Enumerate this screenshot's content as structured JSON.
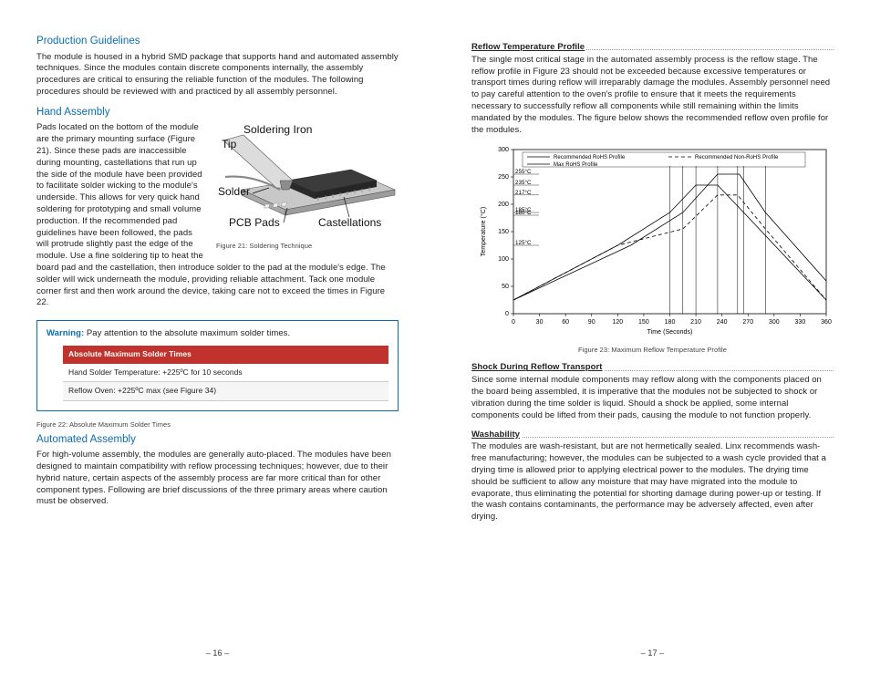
{
  "colors": {
    "heading": "#0a6db2",
    "warn_border": "#0a6db2",
    "table_header_bg": "#c0322b",
    "text": "#222222",
    "figcap": "#444444"
  },
  "fonts": {
    "heading_size_pt": 11.5,
    "body_size_pt": 9.5,
    "figcap_size_pt": 7.5,
    "table_size_pt": 8.5
  },
  "left": {
    "h_production": "Production Guidelines",
    "p_production": "The module is housed in a hybrid SMD package that supports hand and automated assembly techniques. Since the modules contain discrete components internally, the assembly procedures are critical to ensuring the reliable function of the modules. The following procedures should be reviewed with and practiced by all assembly personnel.",
    "h_hand": "Hand Assembly",
    "p_hand": "Pads located on the bottom of the module are the primary mounting surface (Figure 21). Since these pads are inaccessible during mounting, castellations that run up the side of the module have been provided to facilitate solder wicking to the module's underside. This allows for very quick hand soldering for prototyping and small volume production.  If the recommended pad guidelines have been followed, the pads will protrude slightly past the edge of the module. Use a fine soldering tip to heat the board pad and the castellation, then introduce solder to the pad at the module's edge. The solder will wick underneath the module, providing reliable attachment. Tack one module corner first and then work around the device, taking care not to exceed the times in Figure 22.",
    "fig21_labels": {
      "iron": "Soldering Iron",
      "tip": "Tip",
      "solder": "Solder",
      "pcb": "PCB Pads",
      "cast": "Castellations"
    },
    "figcap21": "Figure 21: Soldering Technique",
    "warn_strong": "Warning:",
    "warn_text": " Pay attention to the absolute maximum solder times.",
    "table_header": "Absolute Maximum Solder Times",
    "table_row1": "Hand Solder Temperature: +225ºC for 10 seconds",
    "table_row2": "Reflow Oven: +225ºC max (see Figure 34)",
    "figcap22": "Figure 22: Absolute Maximum Solder Times",
    "h_auto": "Automated Assembly",
    "p_auto": "For high-volume assembly, the modules are generally auto-placed. The modules have been designed to maintain compatibility with reflow processing techniques; however, due to their hybrid nature, certain aspects of the assembly process are far more critical than for other component types. Following are brief discussions of the three primary areas where caution must be observed.",
    "pagenum": "– 16 –"
  },
  "right": {
    "h_reflow": "Reflow Temperature Profile",
    "p_reflow": "The single most critical stage in the automated assembly process is the reflow stage. The reflow profile in Figure 23 should not be exceeded because excessive temperatures or transport times during reflow will irreparably damage the modules. Assembly personnel need to pay careful attention to the oven's profile to ensure that it meets the requirements necessary to successfully reflow all components while still remaining within the limits mandated by the modules. The figure below shows the recommended reflow oven profile for the modules.",
    "chart": {
      "type": "line",
      "x_axis": {
        "label": "Time (Seconds)",
        "min": 0,
        "max": 360,
        "tick_step": 30
      },
      "y_axis": {
        "label": "Temperature (°C)",
        "min": 0,
        "max": 300,
        "tick_step": 50
      },
      "annot_temps": [
        255,
        235,
        217,
        185,
        180,
        125
      ],
      "bg": "#ffffff",
      "axis_color": "#000000",
      "profile_color": "#000000",
      "vguide_color": "#000000",
      "legend": {
        "rohs_rec": "Recommended RoHS Profile",
        "nonrohs_rec": "Recommended Non-RoHS Profile",
        "rohs_max": "Max RoHS Profile"
      },
      "series": {
        "rec_rohs": {
          "style": "solid",
          "width": 0.8,
          "points": [
            [
              0,
              25
            ],
            [
              120,
              125
            ],
            [
              180,
              185
            ],
            [
              210,
              235
            ],
            [
              235,
              235
            ],
            [
              265,
              185
            ],
            [
              360,
              25
            ]
          ]
        },
        "max_rohs": {
          "style": "solid",
          "width": 0.8,
          "points": [
            [
              0,
              25
            ],
            [
              135,
              125
            ],
            [
              195,
              185
            ],
            [
              235,
              255
            ],
            [
              260,
              255
            ],
            [
              290,
              185
            ],
            [
              360,
              60
            ]
          ]
        },
        "rec_nonrohs": {
          "style": "dash",
          "width": 0.8,
          "points": [
            [
              0,
              25
            ],
            [
              120,
              125
            ],
            [
              195,
              155
            ],
            [
              235,
              217
            ],
            [
              258,
              217
            ],
            [
              290,
              155
            ],
            [
              360,
              25
            ]
          ]
        }
      },
      "vguides_x": [
        180,
        195,
        210,
        235,
        258,
        265,
        290
      ]
    },
    "figcap23": "Figure 23: Maximum Reflow Temperature Profile",
    "h_shock": "Shock During Reflow Transport",
    "p_shock": "Since some internal module components may reflow along with the components placed on the board being assembled, it is imperative that the modules not be subjected to shock or vibration during the time solder is liquid. Should a shock be applied, some internal components could be lifted from their pads, causing the module to not function properly.",
    "h_wash": "Washability",
    "p_wash": "The modules are wash-resistant, but are not hermetically sealed. Linx recommends wash-free manufacturing; however, the modules can be subjected to a wash cycle provided that a drying time is allowed prior to applying electrical power to the modules. The drying time should be sufficient to allow any moisture that may have migrated into the module to evaporate, thus eliminating the potential for shorting damage during power-up or testing.  If the wash contains contaminants, the performance may be adversely affected, even after drying.",
    "pagenum": "– 17 –"
  }
}
